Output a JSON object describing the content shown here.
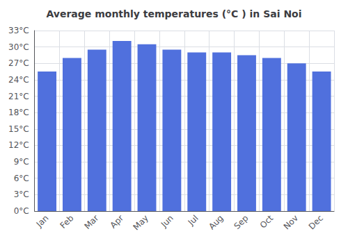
{
  "chart_data": {
    "type": "bar",
    "title": "Average monthly temperatures (°C ) in Sai Noi",
    "categories": [
      "Jan",
      "Feb",
      "Mar",
      "Apr",
      "May",
      "Jun",
      "Jul",
      "Aug",
      "Sep",
      "Oct",
      "Nov",
      "Dec"
    ],
    "values": [
      25.5,
      28.0,
      29.5,
      31.1,
      30.5,
      29.5,
      29.0,
      29.0,
      28.5,
      28.0,
      27.0,
      25.5
    ],
    "ylim": [
      0,
      33
    ],
    "yticks": [
      {
        "value": 0,
        "label": "0°C"
      },
      {
        "value": 3,
        "label": "3°C"
      },
      {
        "value": 6,
        "label": "6°C"
      },
      {
        "value": 9,
        "label": "9°C"
      },
      {
        "value": 12,
        "label": "12°C"
      },
      {
        "value": 15,
        "label": "15°C"
      },
      {
        "value": 18,
        "label": "18°C"
      },
      {
        "value": 21,
        "label": "21°C"
      },
      {
        "value": 24,
        "label": "24°C"
      },
      {
        "value": 27,
        "label": "27°C"
      },
      {
        "value": 30,
        "label": "30°C"
      },
      {
        "value": 33,
        "label": "33°C"
      }
    ],
    "grid": true
  }
}
